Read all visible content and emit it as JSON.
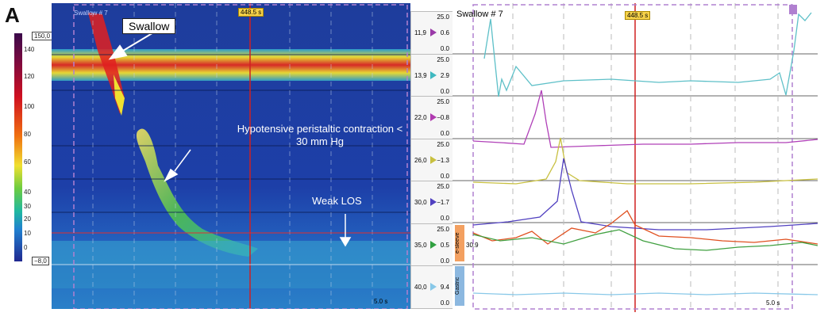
{
  "panel_label": "A",
  "swallow_label": "Swallow",
  "hypotensive_label": "Hypotensive peristaltic contraction < 30 mm Hg",
  "weak_los_label": "Weak LOS",
  "swallow_number": "Swallow # 7",
  "time_marker": "448.5 s",
  "time_scale": "5.0 s",
  "colorbar": {
    "max": "150,0",
    "min": "−8,0",
    "ticks": [
      "140",
      "120",
      "100",
      "80",
      "60",
      "40",
      "30",
      "20",
      "10",
      "0"
    ]
  },
  "channels": [
    {
      "top": "25.0",
      "bottom": "0.0",
      "left": "11,9",
      "right": "0.6",
      "color": "#9a3aa8"
    },
    {
      "top": "25.0",
      "bottom": "0.0",
      "left": "13,9",
      "right": "2.9",
      "color": "#3fb8c0"
    },
    {
      "top": "25.0",
      "bottom": "0.0",
      "left": "22,0",
      "right": "−0.8",
      "color": "#b03ab0"
    },
    {
      "top": "25.0",
      "bottom": "0.0",
      "left": "26,0",
      "right": "−1.3",
      "color": "#c8c040"
    },
    {
      "top": "25.0",
      "bottom": "0.0",
      "left": "30,0",
      "right": "−1.7",
      "color": "#5040c0"
    },
    {
      "top": "25.0",
      "bottom": "0.0",
      "left": "35,0",
      "right": "0.5",
      "color": "#30a040"
    },
    {
      "top": "",
      "bottom": "0.0",
      "left": "40,0",
      "right": "9.4",
      "color": "#88c8e8"
    }
  ],
  "esleeve_label": "e-sleeve",
  "esleeve_value": "30.9",
  "gastric_label": "Gastric"
}
